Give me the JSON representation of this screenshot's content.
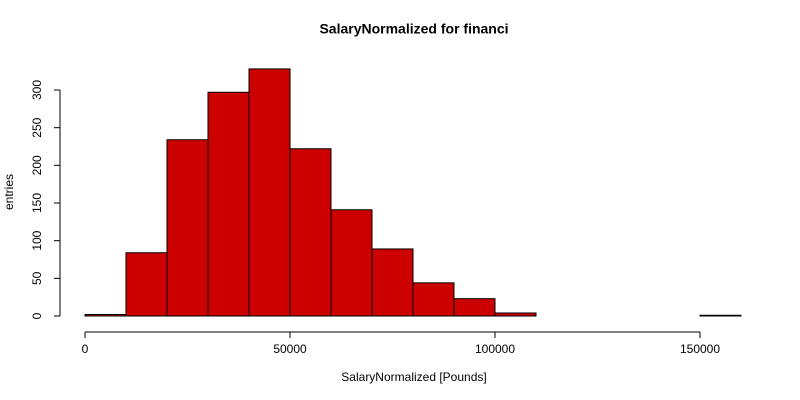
{
  "chart_data": {
    "type": "histogram",
    "title": "SalaryNormalized for financi",
    "x_label": "SalaryNormalized [Pounds]",
    "y_label": "entries",
    "bins": [
      0,
      10000,
      20000,
      30000,
      40000,
      50000,
      60000,
      70000,
      80000,
      90000,
      100000,
      110000,
      120000,
      130000,
      140000,
      150000,
      160000
    ],
    "values": [
      2,
      84,
      234,
      297,
      328,
      222,
      141,
      89,
      44,
      23,
      4,
      0,
      0,
      0,
      0,
      1
    ],
    "color": "#cd0000",
    "xlim": [
      0,
      160000
    ],
    "xticks": [
      0,
      50000,
      100000,
      150000
    ],
    "ylim": [
      0,
      340
    ],
    "yticks": [
      0,
      50,
      100,
      150,
      200,
      250,
      300
    ]
  }
}
